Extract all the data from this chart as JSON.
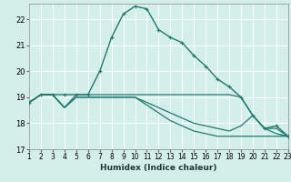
{
  "xlabel": "Humidex (Indice chaleur)",
  "bg_color": "#d4eeea",
  "grid_color": "#ffffff",
  "line_color": "#1e7a6e",
  "xlim": [
    1,
    23
  ],
  "ylim": [
    17,
    22.6
  ],
  "yticks": [
    17,
    18,
    19,
    20,
    21,
    22
  ],
  "xticks": [
    1,
    2,
    3,
    4,
    5,
    6,
    7,
    8,
    9,
    10,
    11,
    12,
    13,
    14,
    15,
    16,
    17,
    18,
    19,
    20,
    21,
    22,
    23
  ],
  "series": [
    {
      "y": [
        18.8,
        19.1,
        19.1,
        19.1,
        19.1,
        19.1,
        20.0,
        21.3,
        22.2,
        22.5,
        22.4,
        21.6,
        21.3,
        21.1,
        20.6,
        20.2,
        19.7,
        19.4,
        19.0,
        18.3,
        17.8,
        17.9,
        17.5
      ],
      "marker": true,
      "lw": 1.0
    },
    {
      "y": [
        18.8,
        19.1,
        19.1,
        18.6,
        19.1,
        19.1,
        19.1,
        19.1,
        19.1,
        19.1,
        19.1,
        19.1,
        19.1,
        19.1,
        19.1,
        19.1,
        19.1,
        19.1,
        19.0,
        18.3,
        17.8,
        17.8,
        17.5
      ],
      "marker": false,
      "lw": 0.9
    },
    {
      "y": [
        18.8,
        19.1,
        19.1,
        18.6,
        19.0,
        19.0,
        19.0,
        19.0,
        19.0,
        19.0,
        18.8,
        18.6,
        18.4,
        18.2,
        18.0,
        17.9,
        17.8,
        17.7,
        17.9,
        18.3,
        17.8,
        17.6,
        17.5
      ],
      "marker": false,
      "lw": 0.9
    },
    {
      "y": [
        18.8,
        19.1,
        19.1,
        18.6,
        19.0,
        19.0,
        19.0,
        19.0,
        19.0,
        19.0,
        18.7,
        18.4,
        18.1,
        17.9,
        17.7,
        17.6,
        17.5,
        17.5,
        17.5,
        17.5,
        17.5,
        17.5,
        17.5
      ],
      "marker": false,
      "lw": 0.9
    }
  ]
}
